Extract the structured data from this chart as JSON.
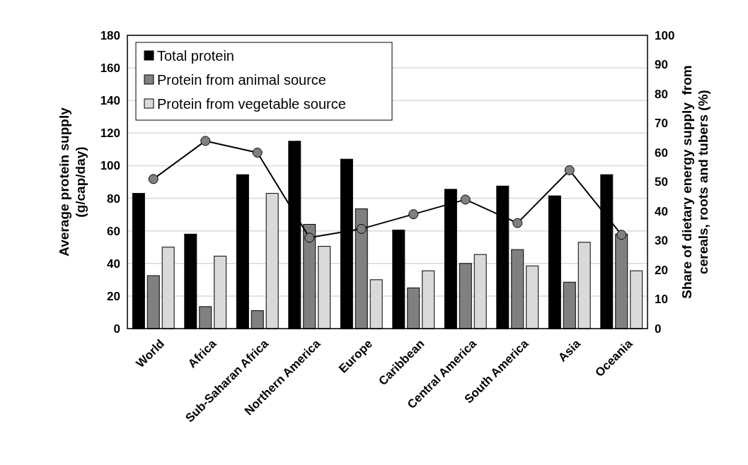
{
  "chart_data": {
    "type": "bar",
    "categories": [
      "World",
      "Africa",
      "Sub-Saharan Africa",
      "Northern America",
      "Europe",
      "Caribbean",
      "Central America",
      "South America",
      "Asia",
      "Oceania"
    ],
    "series": [
      {
        "name": "Total protein",
        "color": "#000000",
        "values": [
          83,
          58,
          94.5,
          115,
          104,
          60.5,
          85.5,
          87.5,
          81.5,
          94.5
        ]
      },
      {
        "name": "Protein from animal source",
        "color": "#808080",
        "values": [
          32.5,
          13.5,
          11,
          64,
          73.5,
          25,
          40,
          48.5,
          28.5,
          58
        ]
      },
      {
        "name": "Protein from vegetable source",
        "color": "#d9d9d9",
        "values": [
          50,
          44.5,
          83,
          50.5,
          30,
          35.5,
          45.5,
          38.5,
          53,
          35.5
        ]
      },
      {
        "type": "line",
        "axis": "y2",
        "color": "#000000",
        "marker": "circle",
        "values": [
          51,
          64,
          60,
          31,
          34,
          39,
          44,
          36,
          54,
          32
        ]
      }
    ],
    "ylabel": "Average protein supply (g/cap/day)",
    "y2label": "Share of dietary energy supply  from cereals, roots and tubers (%)",
    "ylim": [
      0,
      180
    ],
    "yticks": [
      0,
      20,
      40,
      60,
      80,
      100,
      120,
      140,
      160,
      180
    ],
    "y2lim": [
      0,
      100
    ],
    "y2ticks": [
      0,
      10,
      20,
      30,
      40,
      50,
      60,
      70,
      80,
      90,
      100
    ],
    "grid": "y",
    "legend": "top left"
  }
}
